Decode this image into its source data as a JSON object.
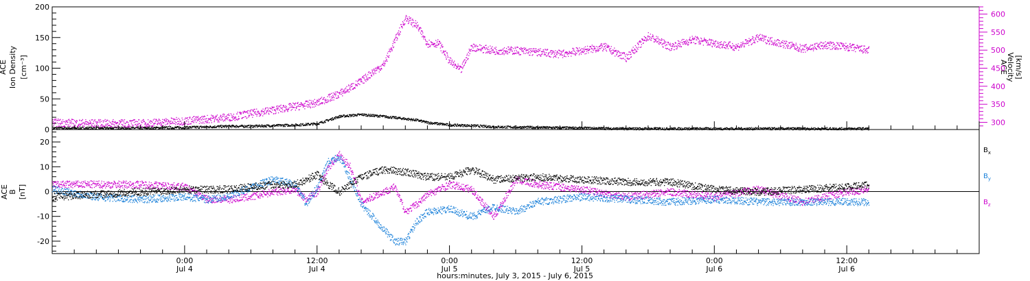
{
  "colors": {
    "axis": "#000000",
    "density": "#000000",
    "velocity": "#cc00cc",
    "bx": "#000000",
    "by": "#1a80d9",
    "bz": "#cc00cc"
  },
  "top_panel": {
    "ylabel": [
      "ACE",
      "Ion Density",
      "[cm⁻³]"
    ],
    "ylabel_right": [
      "ACE",
      "Velocity",
      "[km/s]"
    ]
  },
  "bottom_panel": {
    "ylabel": [
      "ACE",
      "B",
      "[nT]"
    ],
    "legend": [
      "Bx",
      "By",
      "Bz"
    ]
  },
  "xaxis": {
    "title": "hours:minutes, July  3, 2015 - July  6, 2015",
    "ticks": [
      {
        "t": 24,
        "time": "0:00",
        "day": "Jul 4"
      },
      {
        "t": 36,
        "time": "12:00",
        "day": "Jul 4"
      },
      {
        "t": 48,
        "time": "0:00",
        "day": "Jul 5"
      },
      {
        "t": 60,
        "time": "12:00",
        "day": "Jul 5"
      },
      {
        "t": 72,
        "time": "0:00",
        "day": "Jul 6"
      },
      {
        "t": 84,
        "time": "12:00",
        "day": "Jul 6"
      }
    ]
  },
  "chart_data": [
    {
      "type": "scatter",
      "panel": "top",
      "x_unit": "hours since Jul 3 00:00 UT",
      "xlim": [
        12.0,
        96.0
      ],
      "ylim_left": [
        0,
        200
      ],
      "ylim_right": [
        280,
        620
      ],
      "yticks_left": [
        0,
        50,
        100,
        150,
        200
      ],
      "yticks_right": [
        300,
        350,
        400,
        450,
        500,
        550,
        600
      ],
      "series": [
        {
          "name": "Ion Density",
          "axis": "left",
          "x": [
            12,
            16,
            20,
            24,
            28,
            30,
            32,
            34,
            35,
            36,
            37,
            38,
            40,
            42,
            44,
            45,
            46,
            48,
            50,
            52,
            56,
            60,
            64,
            68,
            72,
            76,
            80,
            84,
            86
          ],
          "y": [
            3,
            3,
            3,
            4,
            6,
            6,
            7,
            8,
            9,
            10,
            16,
            22,
            25,
            22,
            18,
            16,
            12,
            8,
            7,
            5,
            4,
            3,
            2,
            2,
            2,
            2,
            2,
            2,
            2
          ]
        },
        {
          "name": "Velocity",
          "axis": "right",
          "x": [
            12,
            16,
            20,
            24,
            28,
            30,
            32,
            34,
            36,
            38,
            40,
            41,
            42,
            43,
            44,
            45,
            46,
            47,
            48,
            49,
            50,
            52,
            54,
            56,
            58,
            60,
            62,
            64,
            66,
            68,
            70,
            72,
            74,
            76,
            78,
            80,
            82,
            84,
            86
          ],
          "y": [
            300,
            298,
            298,
            305,
            315,
            325,
            335,
            345,
            355,
            380,
            415,
            440,
            460,
            525,
            590,
            570,
            520,
            520,
            470,
            445,
            510,
            500,
            500,
            495,
            490,
            500,
            510,
            480,
            540,
            510,
            530,
            520,
            510,
            535,
            520,
            505,
            515,
            510,
            500
          ]
        }
      ]
    },
    {
      "type": "scatter",
      "panel": "bottom",
      "x_unit": "hours since Jul 3 00:00 UT",
      "xlim": [
        12.0,
        96.0
      ],
      "ylim": [
        -25,
        25
      ],
      "yticks": [
        -20,
        -10,
        0,
        10,
        20
      ],
      "series": [
        {
          "name": "Bx",
          "x": [
            12,
            16,
            20,
            24,
            28,
            30,
            32,
            34,
            35,
            36,
            37,
            38,
            40,
            42,
            44,
            46,
            48,
            50,
            52,
            56,
            60,
            64,
            68,
            72,
            76,
            80,
            84,
            86
          ],
          "y": [
            -2,
            -1,
            0,
            1,
            1,
            2,
            3,
            3,
            5,
            7,
            3,
            0,
            6,
            9,
            8,
            6,
            6,
            9,
            5,
            6,
            5,
            4,
            4,
            1,
            0,
            1,
            2,
            3
          ]
        },
        {
          "name": "By",
          "x": [
            12,
            16,
            20,
            24,
            26,
            28,
            30,
            32,
            34,
            35,
            36,
            37,
            38,
            39,
            40,
            42,
            43,
            44,
            45,
            46,
            48,
            50,
            52,
            54,
            56,
            60,
            64,
            68,
            72,
            76,
            80,
            84,
            86
          ],
          "y": [
            1,
            -2,
            -3,
            -2,
            -3,
            -2,
            2,
            5,
            3,
            -5,
            2,
            12,
            14,
            5,
            -5,
            -15,
            -20,
            -20,
            -12,
            -8,
            -7,
            -10,
            -6,
            -8,
            -4,
            -2,
            -3,
            -4,
            -3,
            -4,
            -4,
            -4,
            -4
          ]
        },
        {
          "name": "Bz",
          "x": [
            12,
            16,
            20,
            24,
            26,
            28,
            30,
            32,
            34,
            35,
            36,
            37,
            38,
            39,
            40,
            42,
            43,
            44,
            45,
            46,
            48,
            50,
            52,
            54,
            56,
            60,
            64,
            68,
            72,
            76,
            80,
            84,
            86
          ],
          "y": [
            3,
            3,
            3,
            2,
            -3,
            -3,
            -2,
            0,
            1,
            -3,
            0,
            10,
            15,
            10,
            -4,
            0,
            2,
            -8,
            -5,
            -1,
            3,
            1,
            -10,
            5,
            3,
            1,
            -2,
            0,
            -2,
            1,
            -4,
            0,
            1
          ]
        }
      ]
    }
  ]
}
